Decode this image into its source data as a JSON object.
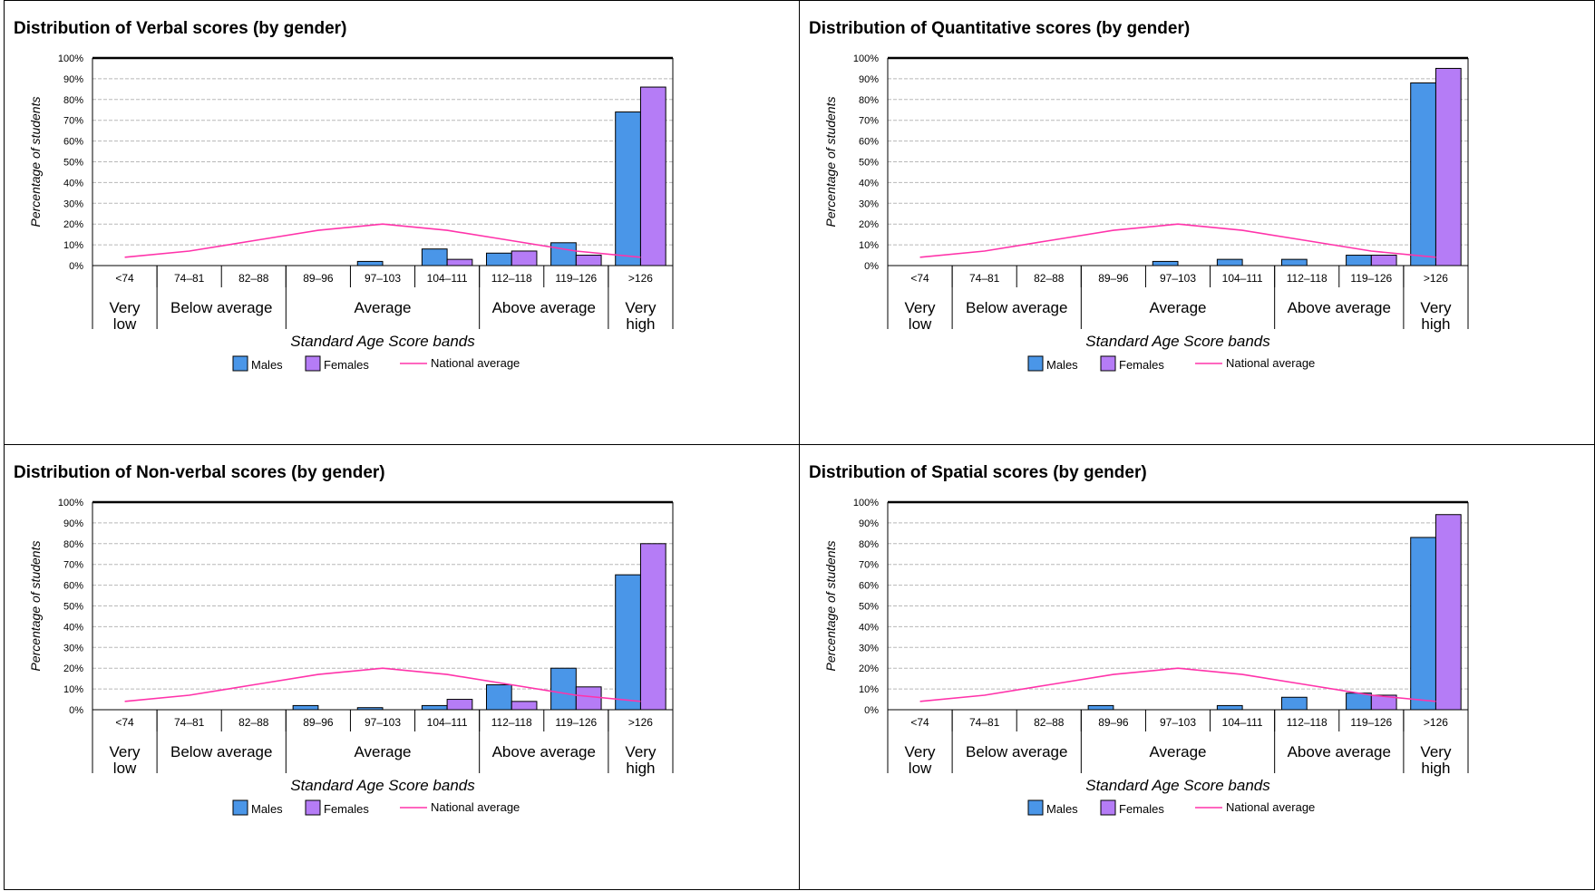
{
  "chart_data": [
    {
      "type": "bar",
      "title": "Distribution of Verbal scores (by gender)",
      "xlabel": "Standard Age Score bands",
      "ylabel": "Percentage of students",
      "ylim": [
        0,
        100
      ],
      "yticks": [
        "0%",
        "10%",
        "20%",
        "30%",
        "40%",
        "50%",
        "60%",
        "70%",
        "80%",
        "90%",
        "100%"
      ],
      "categories": [
        "<74",
        "74–81",
        "82–88",
        "89–96",
        "97–103",
        "104–111",
        "112–118",
        "119–126",
        ">126"
      ],
      "groups": [
        {
          "label_lines": [
            "Very",
            "low"
          ],
          "span": 1
        },
        {
          "label_lines": [
            "Below average"
          ],
          "span": 2
        },
        {
          "label_lines": [
            "Average"
          ],
          "span": 3
        },
        {
          "label_lines": [
            "Above average"
          ],
          "span": 2
        },
        {
          "label_lines": [
            "Very",
            "high"
          ],
          "span": 1
        }
      ],
      "series": [
        {
          "name": "Males",
          "type": "bar",
          "values": [
            0,
            0,
            0,
            0,
            2,
            8,
            6,
            11,
            74
          ]
        },
        {
          "name": "Females",
          "type": "bar",
          "values": [
            0,
            0,
            0,
            0,
            0,
            3,
            7,
            5,
            86
          ]
        },
        {
          "name": "National average",
          "type": "line",
          "values": [
            4,
            7,
            12,
            17,
            20,
            17,
            12,
            7,
            4
          ]
        }
      ],
      "grid": true,
      "legend": "bottom"
    },
    {
      "type": "bar",
      "title": "Distribution of Quantitative scores (by gender)",
      "xlabel": "Standard Age Score bands",
      "ylabel": "Percentage of students",
      "ylim": [
        0,
        100
      ],
      "yticks": [
        "0%",
        "10%",
        "20%",
        "30%",
        "40%",
        "50%",
        "60%",
        "70%",
        "80%",
        "90%",
        "100%"
      ],
      "categories": [
        "<74",
        "74–81",
        "82–88",
        "89–96",
        "97–103",
        "104–111",
        "112–118",
        "119–126",
        ">126"
      ],
      "groups": [
        {
          "label_lines": [
            "Very",
            "low"
          ],
          "span": 1
        },
        {
          "label_lines": [
            "Below average"
          ],
          "span": 2
        },
        {
          "label_lines": [
            "Average"
          ],
          "span": 3
        },
        {
          "label_lines": [
            "Above average"
          ],
          "span": 2
        },
        {
          "label_lines": [
            "Very",
            "high"
          ],
          "span": 1
        }
      ],
      "series": [
        {
          "name": "Males",
          "type": "bar",
          "values": [
            0,
            0,
            0,
            0,
            2,
            3,
            3,
            5,
            88
          ]
        },
        {
          "name": "Females",
          "type": "bar",
          "values": [
            0,
            0,
            0,
            0,
            0,
            0,
            0,
            5,
            95
          ]
        },
        {
          "name": "National average",
          "type": "line",
          "values": [
            4,
            7,
            12,
            17,
            20,
            17,
            12,
            7,
            4
          ]
        }
      ],
      "grid": true,
      "legend": "bottom"
    },
    {
      "type": "bar",
      "title": "Distribution of Non-verbal scores (by gender)",
      "xlabel": "Standard Age Score bands",
      "ylabel": "Percentage of students",
      "ylim": [
        0,
        100
      ],
      "yticks": [
        "0%",
        "10%",
        "20%",
        "30%",
        "40%",
        "50%",
        "60%",
        "70%",
        "80%",
        "90%",
        "100%"
      ],
      "categories": [
        "<74",
        "74–81",
        "82–88",
        "89–96",
        "97–103",
        "104–111",
        "112–118",
        "119–126",
        ">126"
      ],
      "groups": [
        {
          "label_lines": [
            "Very",
            "low"
          ],
          "span": 1
        },
        {
          "label_lines": [
            "Below average"
          ],
          "span": 2
        },
        {
          "label_lines": [
            "Average"
          ],
          "span": 3
        },
        {
          "label_lines": [
            "Above average"
          ],
          "span": 2
        },
        {
          "label_lines": [
            "Very",
            "high"
          ],
          "span": 1
        }
      ],
      "series": [
        {
          "name": "Males",
          "type": "bar",
          "values": [
            0,
            0,
            0,
            2,
            1,
            2,
            12,
            20,
            65
          ]
        },
        {
          "name": "Females",
          "type": "bar",
          "values": [
            0,
            0,
            0,
            0,
            0,
            5,
            4,
            11,
            80
          ]
        },
        {
          "name": "National average",
          "type": "line",
          "values": [
            4,
            7,
            12,
            17,
            20,
            17,
            12,
            7,
            4
          ]
        }
      ],
      "grid": true,
      "legend": "bottom"
    },
    {
      "type": "bar",
      "title": "Distribution of Spatial scores (by gender)",
      "xlabel": "Standard Age Score bands",
      "ylabel": "Percentage of students",
      "ylim": [
        0,
        100
      ],
      "yticks": [
        "0%",
        "10%",
        "20%",
        "30%",
        "40%",
        "50%",
        "60%",
        "70%",
        "80%",
        "90%",
        "100%"
      ],
      "categories": [
        "<74",
        "74–81",
        "82–88",
        "89–96",
        "97–103",
        "104–111",
        "112–118",
        "119–126",
        ">126"
      ],
      "groups": [
        {
          "label_lines": [
            "Very",
            "low"
          ],
          "span": 1
        },
        {
          "label_lines": [
            "Below average"
          ],
          "span": 2
        },
        {
          "label_lines": [
            "Average"
          ],
          "span": 3
        },
        {
          "label_lines": [
            "Above average"
          ],
          "span": 2
        },
        {
          "label_lines": [
            "Very",
            "high"
          ],
          "span": 1
        }
      ],
      "series": [
        {
          "name": "Males",
          "type": "bar",
          "values": [
            0,
            0,
            0,
            2,
            0,
            2,
            6,
            8,
            83
          ]
        },
        {
          "name": "Females",
          "type": "bar",
          "values": [
            0,
            0,
            0,
            0,
            0,
            0,
            0,
            7,
            94
          ]
        },
        {
          "name": "National average",
          "type": "line",
          "values": [
            4,
            7,
            12,
            17,
            20,
            17,
            12,
            7,
            4
          ]
        }
      ],
      "grid": true,
      "legend": "bottom"
    }
  ],
  "colors": {
    "males": "#4a96e8",
    "females": "#b57cf6",
    "national_average": "#ff33aa",
    "gridline": "#b8b8b8",
    "axis": "#000000"
  }
}
